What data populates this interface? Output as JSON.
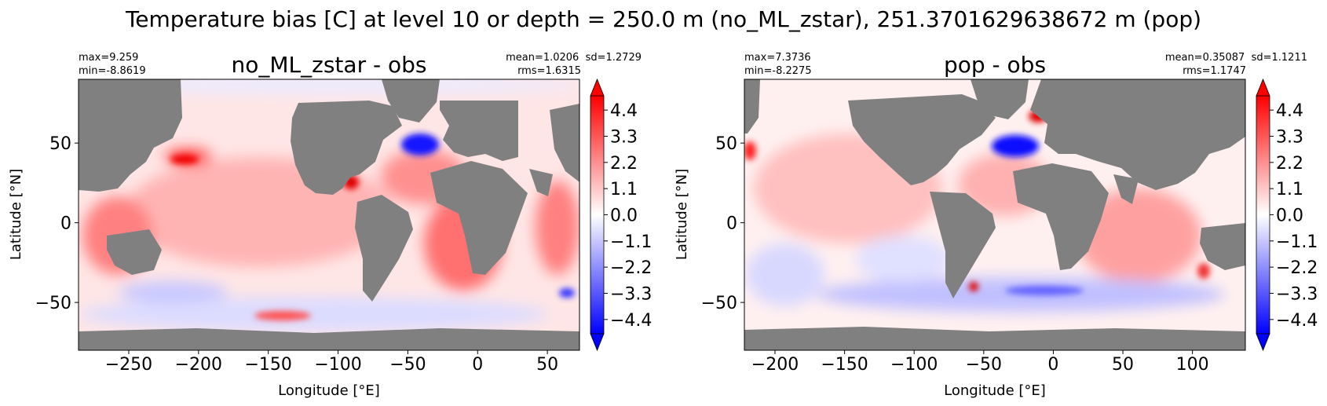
{
  "suptitle": "Temperature bias [C] at level 10 or depth = 250.0 m (no_ML_zstar), 251.3701629638672 m (pop)",
  "colors": {
    "land": "#808080",
    "positive": "#ff0000",
    "negative": "#0000ff",
    "zero": "#ffffff"
  },
  "chart_data": [
    {
      "type": "heatmap",
      "title": "no_ML_zstar - obs",
      "stats_left": [
        "max=9.259",
        "min=-8.8619"
      ],
      "stats_right": [
        "mean=1.0206  sd=1.2729",
        "rms=1.6315"
      ],
      "xlabel": "Longitude [°E]",
      "ylabel": "Latitude [°N]",
      "xlim": [
        -286,
        73
      ],
      "ylim": [
        -80,
        90
      ],
      "xticks": [
        -250,
        -200,
        -150,
        -100,
        -50,
        0,
        50
      ],
      "xtick_labels": [
        "−250",
        "−200",
        "−150",
        "−100",
        "−50",
        "0",
        "50"
      ],
      "yticks": [
        -50,
        0,
        50
      ],
      "ytick_labels": [
        "−50",
        "0",
        "50"
      ],
      "colorbar": {
        "cmap": "bwr",
        "vmin": -5.0,
        "vmax": 5.0,
        "extend": "both",
        "ticks": [
          -4.4,
          -3.3,
          -2.2,
          -1.1,
          0.0,
          1.1,
          2.2,
          3.3,
          4.4
        ],
        "tick_labels": [
          "−4.4",
          "−3.3",
          "−2.2",
          "−1.1",
          "0.0",
          "1.1",
          "2.2",
          "3.3",
          "4.4"
        ]
      }
    },
    {
      "type": "heatmap",
      "title": "pop - obs",
      "stats_left": [
        "max=7.3736",
        "min=-8.2275"
      ],
      "stats_right": [
        "mean=0.35087  sd=1.1211",
        "rms=1.1747"
      ],
      "xlabel": "Longitude [°E]",
      "ylabel": "Latitude [°N]",
      "xlim": [
        -222,
        138
      ],
      "ylim": [
        -80,
        90
      ],
      "xticks": [
        -200,
        -150,
        -100,
        -50,
        0,
        50,
        100
      ],
      "xtick_labels": [
        "−200",
        "−150",
        "−100",
        "−50",
        "0",
        "50",
        "100"
      ],
      "yticks": [
        -50,
        0,
        50
      ],
      "ytick_labels": [
        "−50",
        "0",
        "50"
      ],
      "colorbar": {
        "cmap": "bwr",
        "vmin": -5.0,
        "vmax": 5.0,
        "extend": "both",
        "ticks": [
          -4.4,
          -3.3,
          -2.2,
          -1.1,
          0.0,
          1.1,
          2.2,
          3.3,
          4.4
        ],
        "tick_labels": [
          "−4.4",
          "−3.3",
          "−2.2",
          "−1.1",
          "0.0",
          "1.1",
          "2.2",
          "3.3",
          "4.4"
        ]
      }
    }
  ]
}
